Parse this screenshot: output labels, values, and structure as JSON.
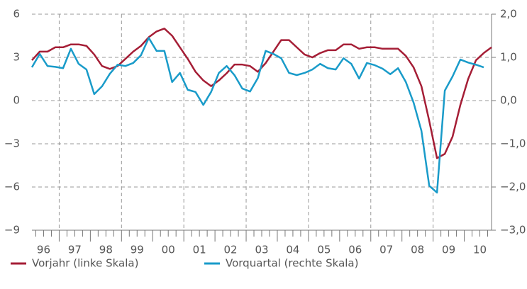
{
  "chart_data": {
    "type": "line",
    "categories": [
      "96",
      null,
      null,
      null,
      "97",
      null,
      null,
      null,
      "98",
      null,
      null,
      null,
      "99",
      null,
      null,
      null,
      "00",
      null,
      null,
      null,
      "01",
      null,
      null,
      null,
      "02",
      null,
      null,
      null,
      "03",
      null,
      null,
      null,
      "04",
      null,
      null,
      null,
      "05",
      null,
      null,
      null,
      "06",
      null,
      null,
      null,
      "07",
      null,
      null,
      null,
      "08",
      null,
      null,
      null,
      "09",
      null,
      null,
      null,
      "10",
      null,
      null,
      null
    ],
    "series": [
      {
        "name": "Vorjahr (linke Skala)",
        "color": "#a51e36",
        "axis": "y",
        "values": [
          2.8,
          3.4,
          3.4,
          3.7,
          3.7,
          3.9,
          3.9,
          3.8,
          3.2,
          2.4,
          2.2,
          2.4,
          2.9,
          3.4,
          3.8,
          4.4,
          4.8,
          5.0,
          4.5,
          3.7,
          2.9,
          2.0,
          1.4,
          1.0,
          1.4,
          1.9,
          2.5,
          2.5,
          2.4,
          2.0,
          2.6,
          3.4,
          4.2,
          4.2,
          3.7,
          3.2,
          3.0,
          3.3,
          3.5,
          3.5,
          3.9,
          3.9,
          3.6,
          3.7,
          3.7,
          3.6,
          3.6,
          3.6,
          3.1,
          2.3,
          1.0,
          -1.4,
          -4.0,
          -3.7,
          -2.5,
          -0.3,
          1.5,
          2.8,
          3.3,
          3.7
        ]
      },
      {
        "name": "Vorquartal (rechte Skala)",
        "color": "#199bc9",
        "axis": "y2",
        "values": [
          0.77,
          1.08,
          0.8,
          0.78,
          0.75,
          1.2,
          0.85,
          0.72,
          0.15,
          0.33,
          0.62,
          0.83,
          0.8,
          0.87,
          1.05,
          1.45,
          1.15,
          1.15,
          0.43,
          0.64,
          0.25,
          0.2,
          -0.1,
          0.2,
          0.64,
          0.8,
          0.59,
          0.28,
          0.21,
          0.52,
          1.15,
          1.08,
          0.98,
          0.64,
          0.59,
          0.64,
          0.72,
          0.85,
          0.75,
          0.72,
          0.98,
          0.85,
          0.51,
          0.87,
          0.82,
          0.74,
          0.61,
          0.75,
          0.43,
          -0.05,
          -0.7,
          -1.97,
          -2.13,
          0.23,
          0.56,
          0.95,
          0.88,
          0.83,
          0.77,
          null
        ]
      }
    ],
    "ylim": [
      -9,
      6
    ],
    "yticks": [
      {
        "value": -9,
        "label": "−9"
      },
      {
        "value": -6,
        "label": "−6"
      },
      {
        "value": -3,
        "label": "−3"
      },
      0,
      3,
      6
    ],
    "y2lim": [
      -3,
      2
    ],
    "y2ticks": [
      {
        "value": -3,
        "label": "−3,0"
      },
      {
        "value": -2,
        "label": "−2,0"
      },
      {
        "value": -1,
        "label": "−1,0"
      },
      {
        "value": 0,
        "label": "0,0"
      },
      {
        "value": 1,
        "label": "1,0"
      },
      {
        "value": 2,
        "label": "2,0"
      }
    ],
    "grid": true
  }
}
